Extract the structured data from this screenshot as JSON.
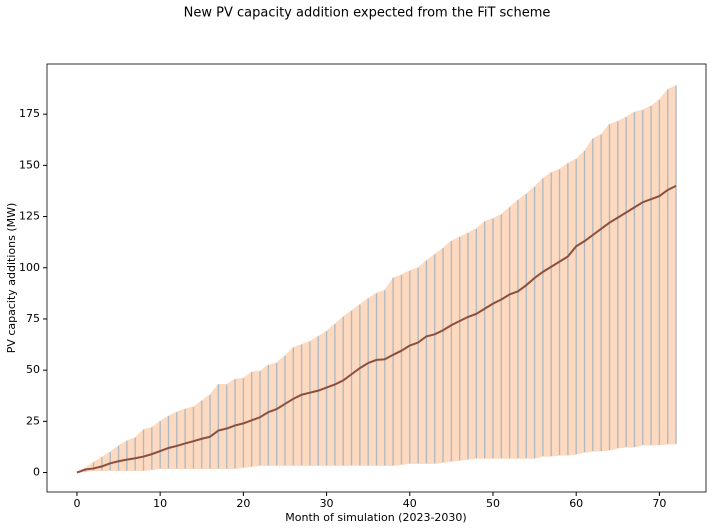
{
  "chart_data": {
    "type": "band_line",
    "title": "New PV capacity addition expected from the FiT scheme",
    "xlabel": "Month of simulation (2023-2030)",
    "ylabel": "PV capacity additions (MW)",
    "x": [
      0,
      1,
      2,
      3,
      4,
      5,
      6,
      7,
      8,
      9,
      10,
      11,
      12,
      13,
      14,
      15,
      16,
      17,
      18,
      19,
      20,
      21,
      22,
      23,
      24,
      25,
      26,
      27,
      28,
      29,
      30,
      31,
      32,
      33,
      34,
      35,
      36,
      37,
      38,
      39,
      40,
      41,
      42,
      43,
      44,
      45,
      46,
      47,
      48,
      49,
      50,
      51,
      52,
      53,
      54,
      55,
      56,
      57,
      58,
      59,
      60,
      61,
      62,
      63,
      64,
      65,
      66,
      67,
      68,
      69,
      70,
      71,
      72
    ],
    "values": [
      0,
      1.5,
      2,
      3,
      4.5,
      5.5,
      6.3,
      7,
      7.8,
      9,
      10.5,
      12,
      13,
      14.2,
      15.3,
      16.5,
      17.5,
      20.5,
      21.5,
      23,
      24,
      25.5,
      27,
      29.5,
      31,
      33.5,
      36,
      38,
      39,
      40,
      41.5,
      43,
      45,
      48,
      51,
      53.5,
      55,
      55.3,
      57.5,
      59.5,
      62,
      63.5,
      66.5,
      67.5,
      69.5,
      72,
      74,
      76,
      77.5,
      80,
      82.5,
      84.5,
      87,
      88.5,
      91.5,
      95,
      98,
      100.5,
      103,
      105.5,
      110.5,
      113,
      116,
      119,
      122,
      124.5,
      127,
      129.5,
      132,
      133.5,
      135,
      138,
      140
    ],
    "upper": [
      0,
      2,
      5,
      7.5,
      10,
      13,
      15.5,
      17,
      21,
      22,
      25,
      27.5,
      29.5,
      31,
      32,
      35,
      38,
      43,
      43,
      45.5,
      46,
      49,
      49.5,
      52.5,
      53.5,
      57,
      61,
      62.5,
      64,
      66.5,
      69,
      72.5,
      76,
      79,
      82,
      85,
      87.5,
      89,
      95,
      96.5,
      98.5,
      100,
      103.5,
      106.5,
      109.5,
      113,
      115,
      117,
      119,
      122.5,
      124,
      126,
      129.5,
      133,
      136,
      139.5,
      143.5,
      146.5,
      148,
      151,
      153,
      157,
      163,
      165,
      170,
      171.5,
      173.5,
      176,
      177,
      179,
      182,
      187,
      189
    ],
    "lower": [
      0,
      0.5,
      1,
      1,
      1,
      1,
      1,
      1,
      1,
      1.5,
      2,
      2,
      2,
      2,
      2,
      2,
      2,
      2,
      2,
      2,
      2.5,
      3,
      3.5,
      3.5,
      3.5,
      3.5,
      3.5,
      3.5,
      3.5,
      3.5,
      3.5,
      3.5,
      3.5,
      3.5,
      3.5,
      3.5,
      3.5,
      3.5,
      3.5,
      4,
      4.5,
      4.5,
      4.5,
      4.5,
      5,
      5.5,
      6,
      6.5,
      7,
      7,
      7,
      7,
      7,
      7,
      7,
      7,
      8,
      8,
      8.5,
      8.5,
      9,
      10,
      10.5,
      10.5,
      11,
      12,
      12.5,
      12.5,
      13.5,
      13.5,
      13.5,
      14,
      14
    ],
    "color": "#8c4f3d",
    "band_color": "#fdd9bf",
    "rule_color": "#a9b9c6",
    "xlim": [
      -3.6,
      75.6
    ],
    "ylim": [
      -9.5,
      199.5
    ],
    "xticks": [
      0,
      10,
      20,
      30,
      40,
      50,
      60,
      70
    ],
    "yticks": [
      0,
      25,
      50,
      75,
      100,
      125,
      150,
      175
    ]
  }
}
